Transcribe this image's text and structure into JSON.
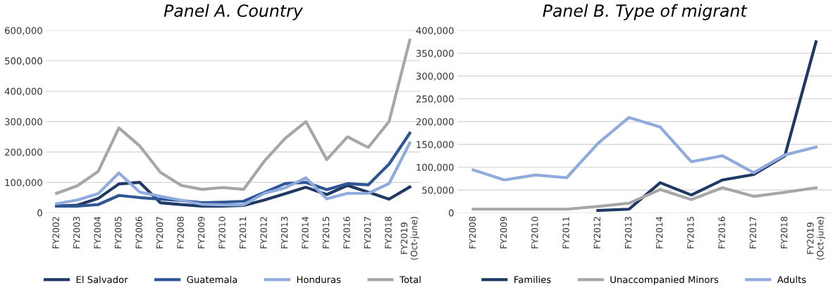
{
  "chart_data": [
    {
      "type": "line",
      "title": "Panel A. Country",
      "categories": [
        "FY2002",
        "FY2003",
        "FY2004",
        "FY2005",
        "FY2006",
        "FY2007",
        "FY2008",
        "FY2009",
        "FY2010",
        "FY2011",
        "FY2012",
        "FY2013",
        "FY2014",
        "FY2015",
        "FY2016",
        "FY2017",
        "FY2018",
        "FY2019\n(Oct-june)"
      ],
      "series": [
        {
          "name": "El Salvador",
          "color": "#1f3864",
          "values": [
            22000,
            25000,
            47000,
            95000,
            100000,
            33000,
            27000,
            22000,
            22000,
            24000,
            42000,
            63000,
            84000,
            60000,
            90000,
            68000,
            45000,
            85000
          ]
        },
        {
          "name": "Guatemala",
          "color": "#2f5597",
          "values": [
            22000,
            22000,
            27000,
            57000,
            50000,
            45000,
            40000,
            33000,
            35000,
            38000,
            67000,
            96000,
            100000,
            76000,
            96000,
            92000,
            160000,
            262000
          ]
        },
        {
          "name": "Honduras",
          "color": "#8faadc",
          "values": [
            30000,
            42000,
            63000,
            131000,
            68000,
            54000,
            41000,
            28000,
            26000,
            26000,
            64000,
            82000,
            115000,
            46000,
            64000,
            64000,
            96000,
            230000
          ]
        },
        {
          "name": "Total",
          "color": "#a6a6a6",
          "values": [
            64000,
            89000,
            136000,
            279000,
            220000,
            133000,
            90000,
            77000,
            83000,
            77000,
            170000,
            245000,
            300000,
            175000,
            250000,
            215000,
            300000,
            568000
          ]
        }
      ],
      "ylim": [
        0,
        600000
      ],
      "yticks": [
        {
          "value": 0,
          "label": "0"
        },
        {
          "value": 100000,
          "label": "100,000"
        },
        {
          "value": 200000,
          "label": "200,000"
        },
        {
          "value": 300000,
          "label": "300,000"
        },
        {
          "value": 400000,
          "label": "400,000"
        },
        {
          "value": 500000,
          "label": "500,000"
        },
        {
          "value": 600000,
          "label": "600,000"
        }
      ],
      "grid": "y",
      "legend": "bottom",
      "marker": "none",
      "line_style": "solid"
    },
    {
      "type": "line",
      "title": "Panel B. Type of migrant",
      "categories": [
        "FY2008",
        "FY2009",
        "FY2010",
        "FY2011",
        "FY2012",
        "FY2013",
        "FY2014",
        "FY2015",
        "FY2016",
        "FY2017",
        "FY2018",
        "FY2019\n(Oct-june)"
      ],
      "series": [
        {
          "name": "Families",
          "color": "#1f3864",
          "values": [
            null,
            null,
            null,
            null,
            5000,
            8000,
            66000,
            39000,
            72000,
            84000,
            125000,
            375000
          ]
        },
        {
          "name": "Unaccompanied Minors",
          "color": "#a6a6a6",
          "values": [
            8000,
            8000,
            8000,
            8000,
            14000,
            21000,
            51000,
            29000,
            55000,
            36000,
            45000,
            55000
          ]
        },
        {
          "name": "Adults",
          "color": "#8faadc",
          "values": [
            94000,
            72000,
            83000,
            77000,
            152000,
            209000,
            188000,
            112000,
            125000,
            88000,
            127000,
            144000
          ]
        }
      ],
      "ylim": [
        0,
        400000
      ],
      "yticks": [
        {
          "value": 0,
          "label": "0"
        },
        {
          "value": 50000,
          "label": "50,000"
        },
        {
          "value": 100000,
          "label": "100,000"
        },
        {
          "value": 150000,
          "label": "150,000"
        },
        {
          "value": 200000,
          "label": "200,000"
        },
        {
          "value": 250000,
          "label": "250,000"
        },
        {
          "value": 300000,
          "label": "300,000"
        },
        {
          "value": 350000,
          "label": "350,000"
        },
        {
          "value": 400000,
          "label": "400,000"
        }
      ],
      "grid": "y",
      "legend": "bottom",
      "marker": "none",
      "line_style": "solid"
    }
  ]
}
